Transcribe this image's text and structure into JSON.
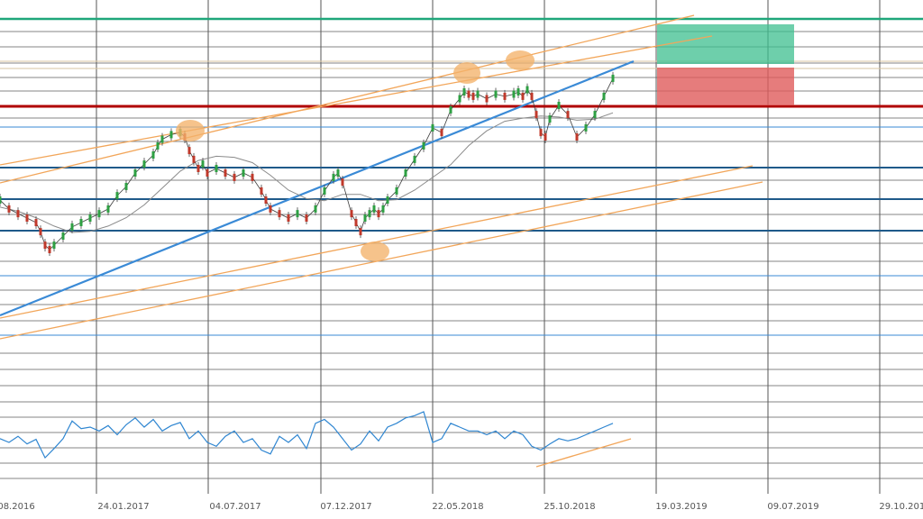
{
  "chart_data": {
    "type": "line",
    "title": "",
    "xlabel": "",
    "ylabel": "",
    "grid": true,
    "x_tick_labels": [
      "08.2016",
      "24.01.2017",
      "04.07.2017",
      "07.12.2017",
      "22.05.2018",
      "25.10.2018",
      "19.03.2019",
      "09.07.2019",
      "29.10.2019"
    ],
    "price_range": [
      0,
      100
    ],
    "oscillator_range": [
      0,
      100
    ],
    "price_series": {
      "name": "",
      "x": [
        0,
        10,
        20,
        30,
        40,
        45,
        50,
        55,
        60,
        70,
        80,
        90,
        100,
        110,
        120,
        130,
        140,
        150,
        160,
        170,
        175,
        180,
        190,
        200,
        205,
        210,
        215,
        220,
        225,
        230,
        240,
        250,
        260,
        270,
        280,
        290,
        295,
        300,
        310,
        320,
        330,
        340,
        350,
        360,
        370,
        375,
        380,
        390,
        395,
        400,
        405,
        410,
        415,
        420,
        425,
        430,
        440,
        450,
        460,
        470,
        480,
        490,
        500,
        510,
        515,
        520,
        525,
        530,
        540,
        550,
        560,
        570,
        575,
        580,
        585,
        590,
        595,
        600,
        605,
        610,
        620,
        630,
        640,
        650,
        660,
        670,
        680
      ],
      "values": [
        55.3,
        51.1,
        48.9,
        46.8,
        44.7,
        40.4,
        34.0,
        31.9,
        34.0,
        38.3,
        42.6,
        44.7,
        46.8,
        48.9,
        51.1,
        57.4,
        61.7,
        68.1,
        72.3,
        76.6,
        80.9,
        84.0,
        86.2,
        87.2,
        85.1,
        78.7,
        74.5,
        70.2,
        72.3,
        68.1,
        70.2,
        68.1,
        66.0,
        68.1,
        66.0,
        59.6,
        55.3,
        51.1,
        48.9,
        46.8,
        48.9,
        46.8,
        51.1,
        59.6,
        66.0,
        68.1,
        63.8,
        48.9,
        44.7,
        40.4,
        46.8,
        48.9,
        51.1,
        48.9,
        51.1,
        55.3,
        59.6,
        68.1,
        74.5,
        80.9,
        89.4,
        87.2,
        97.9,
        103.2,
        106.4,
        105.3,
        104.3,
        105.3,
        103.2,
        105.3,
        104.3,
        105.3,
        106.4,
        104.3,
        107.4,
        104.3,
        95.7,
        87.2,
        85.1,
        93.6,
        100.0,
        95.7,
        85.1,
        89.4,
        95.7,
        104.3,
        112.8
      ]
    },
    "moving_average": {
      "name": "",
      "x": [
        0,
        20,
        40,
        60,
        80,
        100,
        120,
        140,
        160,
        180,
        200,
        220,
        240,
        260,
        280,
        300,
        320,
        340,
        360,
        380,
        400,
        420,
        440,
        460,
        480,
        500,
        520,
        540,
        560,
        580,
        600,
        620,
        640,
        660,
        680
      ],
      "values": [
        52,
        50,
        47,
        43,
        40,
        40.5,
        43,
        47,
        53,
        61,
        69,
        74,
        76,
        75.5,
        73,
        67,
        60,
        56,
        55,
        58,
        58,
        55,
        55.5,
        60,
        66,
        72,
        81,
        88,
        92.5,
        94,
        95,
        94.5,
        93,
        93.5,
        96.5
      ]
    },
    "oscillator": {
      "name": "",
      "x": [
        0,
        10,
        20,
        30,
        40,
        50,
        60,
        70,
        80,
        90,
        100,
        110,
        120,
        130,
        140,
        150,
        160,
        170,
        180,
        190,
        200,
        210,
        220,
        230,
        240,
        250,
        260,
        270,
        280,
        290,
        300,
        310,
        320,
        330,
        340,
        350,
        360,
        370,
        380,
        390,
        400,
        410,
        420,
        430,
        440,
        450,
        460,
        470,
        480,
        490,
        500,
        510,
        520,
        530,
        540,
        550,
        560,
        570,
        580,
        590,
        600,
        610,
        620,
        630,
        640,
        650,
        660,
        670,
        680
      ],
      "values": [
        45,
        40,
        48,
        38,
        44,
        20,
        32,
        45,
        68,
        58,
        60,
        55,
        62,
        50,
        63,
        72,
        60,
        70,
        55,
        62,
        66,
        45,
        55,
        40,
        35,
        48,
        55,
        40,
        45,
        30,
        25,
        48,
        40,
        50,
        32,
        65,
        70,
        60,
        45,
        30,
        38,
        55,
        42,
        60,
        65,
        72,
        75,
        80,
        40,
        45,
        65,
        60,
        55,
        55,
        50,
        55,
        45,
        55,
        50,
        35,
        30,
        38,
        45,
        42,
        45,
        50,
        55,
        60,
        65
      ]
    },
    "annotations": {
      "price_zone_colors": [
        "#3dbf8f",
        "#e05b5b"
      ],
      "line_colors": [
        "#1fa67a",
        "#b00000",
        "#1f5a8a",
        "#3a8ad6",
        "#f2a65a"
      ],
      "highlight_color": "#f4b26a"
    }
  }
}
